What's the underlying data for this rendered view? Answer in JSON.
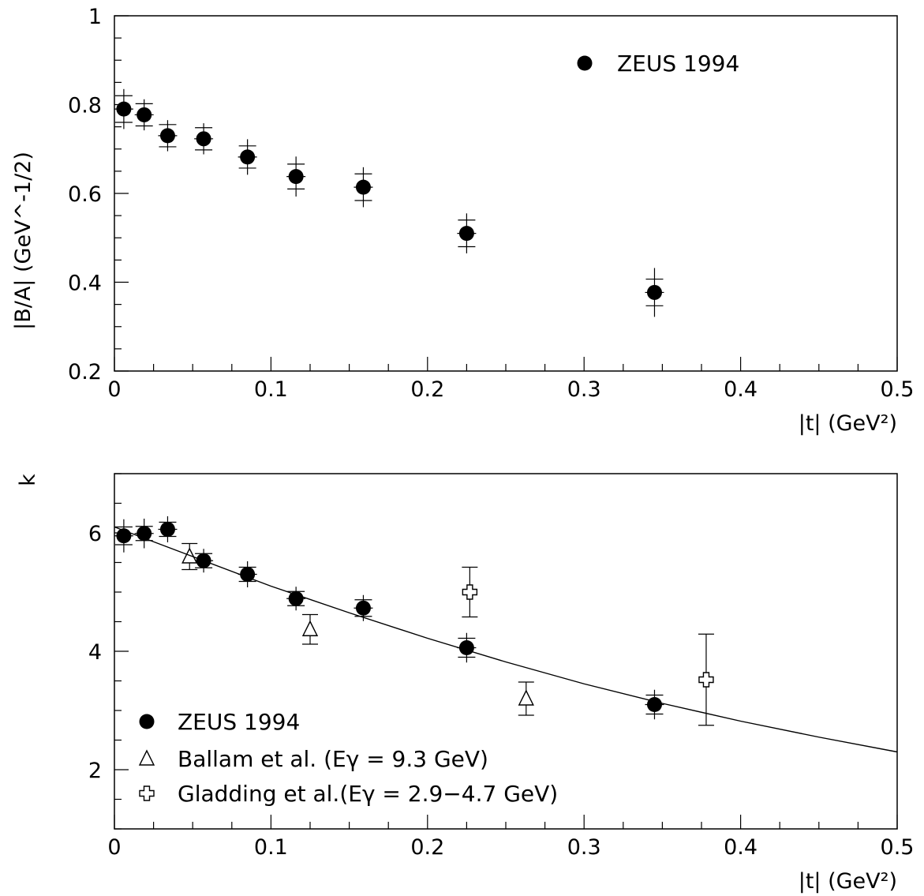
{
  "chart_data": [
    {
      "type": "scatter",
      "title": "",
      "xlabel": "|t| (GeV²)",
      "ylabel": "|B/A| (GeV^-1/2)",
      "xlim": [
        0,
        0.5
      ],
      "ylim": [
        0.2,
        1.0
      ],
      "x_ticks": [
        "0",
        "0.1",
        "0.2",
        "0.3",
        "0.4",
        "0.5"
      ],
      "y_ticks": [
        "0.2",
        "0.4",
        "0.6",
        "0.8",
        "1"
      ],
      "grid": false,
      "legend_position": "top-right",
      "series": [
        {
          "name": "ZEUS 1994",
          "marker": "filled-circle",
          "x": [
            0.006,
            0.019,
            0.034,
            0.057,
            0.085,
            0.116,
            0.159,
            0.225,
            0.345
          ],
          "y": [
            0.79,
            0.777,
            0.73,
            0.723,
            0.682,
            0.638,
            0.614,
            0.51,
            0.377
          ],
          "err_inner": [
            0.03,
            0.025,
            0.025,
            0.025,
            0.025,
            0.028,
            0.03,
            0.03,
            0.03
          ],
          "err_outer": [
            0.045,
            0.035,
            0.035,
            0.035,
            0.04,
            0.045,
            0.045,
            0.045,
            0.055
          ]
        }
      ]
    },
    {
      "type": "scatter",
      "title": "",
      "xlabel": "|t| (GeV²)",
      "ylabel": "k",
      "xlim": [
        0,
        0.5
      ],
      "ylim": [
        1,
        7
      ],
      "x_ticks": [
        "0",
        "0.1",
        "0.2",
        "0.3",
        "0.4",
        "0.5"
      ],
      "y_ticks": [
        "2",
        "4",
        "6"
      ],
      "grid": false,
      "legend_position": "bottom-left",
      "series": [
        {
          "name": "ZEUS 1994",
          "marker": "filled-circle",
          "x": [
            0.006,
            0.019,
            0.034,
            0.057,
            0.085,
            0.116,
            0.159,
            0.225,
            0.345
          ],
          "y": [
            5.95,
            5.99,
            6.06,
            5.53,
            5.3,
            4.89,
            4.73,
            4.06,
            3.1
          ],
          "err_inner": [
            0.15,
            0.12,
            0.12,
            0.12,
            0.12,
            0.12,
            0.14,
            0.16,
            0.16
          ],
          "err_outer": [
            0.28,
            0.25,
            0.22,
            0.2,
            0.22,
            0.2,
            0.22,
            0.25,
            0.25
          ]
        },
        {
          "name": "Ballam et al. (Eγ = 9.3 GeV)",
          "marker": "open-triangle",
          "x": [
            0.048,
            0.125,
            0.263
          ],
          "y": [
            5.6,
            4.37,
            3.2
          ],
          "err": [
            0.22,
            0.25,
            0.28
          ]
        },
        {
          "name": "Gladding et al.(Eγ = 2.9−4.7 GeV)",
          "marker": "open-cross",
          "x": [
            0.227,
            0.378
          ],
          "y": [
            5.0,
            3.52
          ],
          "err": [
            0.42,
            0.77
          ]
        },
        {
          "name": "fit",
          "type": "line",
          "x": [
            0.0,
            0.05,
            0.1,
            0.15,
            0.2,
            0.25,
            0.3,
            0.35,
            0.4,
            0.45,
            0.5
          ],
          "y": [
            6.1,
            5.6,
            5.1,
            4.65,
            4.22,
            3.82,
            3.45,
            3.12,
            2.82,
            2.55,
            2.3
          ]
        }
      ]
    }
  ]
}
